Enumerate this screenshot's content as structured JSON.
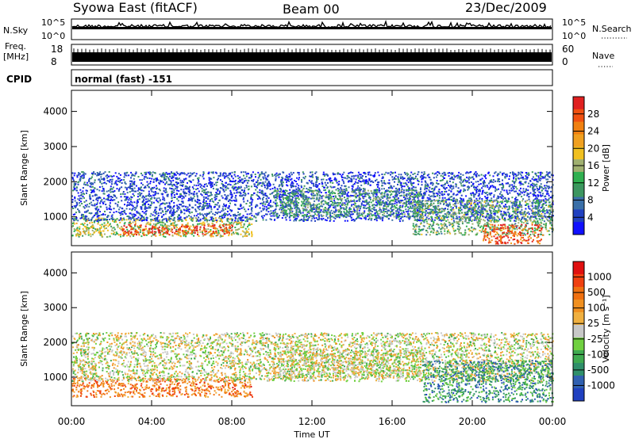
{
  "header": {
    "title": "Syowa East (fitACF)",
    "beam": "Beam 00",
    "date": "23/Dec/2009"
  },
  "top_panels": {
    "nsky_label": "N.Sky",
    "nsky_ticks": [
      "10^5",
      "10^0"
    ],
    "nsearch_label": "N.Search",
    "nsearch_ticks": [
      "10^5",
      "10^0"
    ],
    "freq_label": "Freq.",
    "freq_unit": "[MHz]",
    "freq_ticks": [
      "18",
      "8"
    ],
    "nave_label": "Nave",
    "nave_ticks": [
      "60",
      "0"
    ],
    "cpid_label": "CPID",
    "cpid_text": "normal (fast) -151"
  },
  "chart_data": [
    {
      "type": "heatmap",
      "name": "power",
      "ylabel": "Slant Range [km]",
      "y_ticks": [
        "4000",
        "3000",
        "2000",
        "1000"
      ],
      "y_tick_values": [
        4000,
        3000,
        2000,
        1000
      ],
      "ylim": [
        180,
        4600
      ],
      "colorbar": {
        "label": "Power [dB]",
        "ticks": [
          "28",
          "24",
          "20",
          "16",
          "12",
          "8",
          "4"
        ],
        "colors": [
          "#1010ff",
          "#2040c0",
          "#3a6fa8",
          "#3d9660",
          "#30b050",
          "#a0b070",
          "#f0c020",
          "#f0a020",
          "#f08010",
          "#f05010",
          "#e02020"
        ]
      },
      "echo_regions": [
        {
          "t0": 0.0,
          "t1": 9.0,
          "r0": 450,
          "r1": 1000,
          "level": 0.5
        },
        {
          "t0": 2.5,
          "t1": 8.0,
          "r0": 500,
          "r1": 800,
          "level": 0.9
        },
        {
          "t0": 0.0,
          "t1": 24.0,
          "r0": 900,
          "r1": 2300,
          "level": 0.15
        },
        {
          "t0": 10.0,
          "t1": 17.5,
          "r0": 1000,
          "r1": 1800,
          "level": 0.35
        },
        {
          "t0": 17.0,
          "t1": 24.0,
          "r0": 500,
          "r1": 1500,
          "level": 0.4
        },
        {
          "t0": 20.5,
          "t1": 23.5,
          "r0": 250,
          "r1": 800,
          "level": 0.85
        }
      ]
    },
    {
      "type": "heatmap",
      "name": "velocity",
      "xlabel": "Time UT",
      "ylabel": "Slant Range [km]",
      "x_ticks": [
        "00:00",
        "04:00",
        "08:00",
        "12:00",
        "16:00",
        "20:00",
        "00:00"
      ],
      "x_tick_hours": [
        0,
        4,
        8,
        12,
        16,
        20,
        24
      ],
      "xlim": [
        0,
        24
      ],
      "y_ticks": [
        "4000",
        "3000",
        "2000",
        "1000"
      ],
      "y_tick_values": [
        4000,
        3000,
        2000,
        1000
      ],
      "ylim": [
        180,
        4600
      ],
      "colorbar": {
        "label": "Velocity [m s⁻¹]",
        "ticks": [
          "1000",
          "500",
          "100",
          "25",
          "-25",
          "-100",
          "-500",
          "-1000"
        ],
        "colors": [
          "#2040c0",
          "#3060b0",
          "#2f8f6a",
          "#3faa50",
          "#70d040",
          "#c8c8c8",
          "#f0b040",
          "#f09020",
          "#f07010",
          "#f04010",
          "#e01010"
        ]
      },
      "echo_regions": [
        {
          "t0": 0.0,
          "t1": 9.0,
          "r0": 450,
          "r1": 1000,
          "level": 0.75
        },
        {
          "t0": 0.0,
          "t1": 24.0,
          "r0": 900,
          "r1": 2300,
          "level": 0.5
        },
        {
          "t0": 10.0,
          "t1": 17.5,
          "r0": 1000,
          "r1": 1800,
          "level": 0.5
        },
        {
          "t0": 17.5,
          "t1": 24.0,
          "r0": 300,
          "r1": 1500,
          "level": 0.25
        }
      ]
    }
  ]
}
